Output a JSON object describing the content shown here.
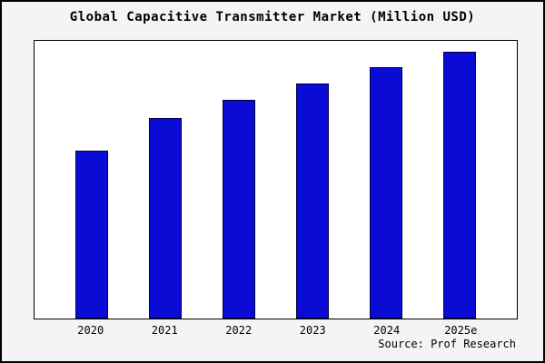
{
  "title": "Global Capacitive Transmitter Market (Million USD)",
  "source": "Source: Prof Research",
  "colors": {
    "page_background": "#f4f4f4",
    "plot_background": "#ffffff",
    "border": "#000000",
    "bar_fill": "#0b0bd6",
    "bar_edge": "#000040"
  },
  "chart_data": {
    "type": "bar",
    "title": "Global Capacitive Transmitter Market (Million USD)",
    "categories": [
      "2020",
      "2021",
      "2022",
      "2023",
      "2024",
      "2025e"
    ],
    "values": [
      63,
      75,
      82,
      88,
      94,
      100
    ],
    "xlabel": "",
    "ylabel": "",
    "ylim": [
      0,
      104
    ],
    "grid": false,
    "legend": false,
    "bar_color": "#0b0bd6",
    "bar_edge_color": "#000040",
    "annotation": "Source: Prof Research"
  }
}
